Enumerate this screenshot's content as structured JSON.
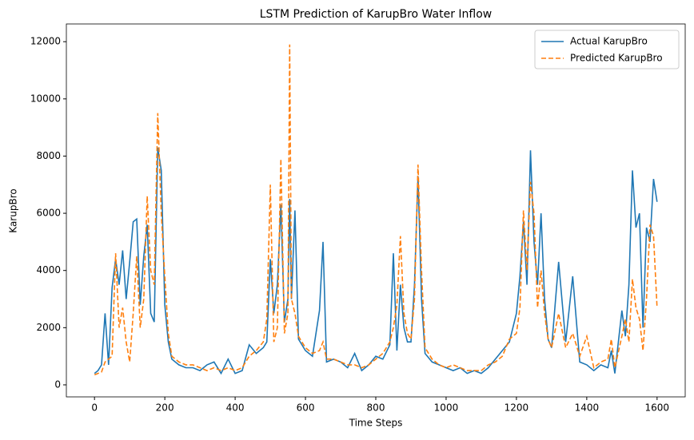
{
  "chart_data": {
    "type": "line",
    "title": "LSTM Prediction of KarupBro Water Inflow",
    "x_label": "Time Steps",
    "y_label": "KarupBro",
    "x": [
      0,
      10,
      20,
      30,
      40,
      50,
      60,
      70,
      80,
      90,
      100,
      110,
      120,
      130,
      140,
      150,
      160,
      170,
      180,
      190,
      200,
      210,
      220,
      240,
      260,
      280,
      300,
      320,
      340,
      360,
      380,
      400,
      420,
      440,
      460,
      480,
      490,
      500,
      510,
      520,
      530,
      540,
      550,
      555,
      560,
      570,
      580,
      600,
      620,
      640,
      650,
      660,
      680,
      700,
      720,
      740,
      760,
      780,
      800,
      820,
      840,
      850,
      860,
      870,
      880,
      890,
      900,
      910,
      920,
      930,
      940,
      960,
      980,
      1000,
      1020,
      1040,
      1060,
      1080,
      1100,
      1120,
      1140,
      1160,
      1180,
      1200,
      1210,
      1220,
      1230,
      1240,
      1250,
      1260,
      1270,
      1280,
      1290,
      1300,
      1320,
      1340,
      1360,
      1380,
      1400,
      1420,
      1440,
      1460,
      1470,
      1480,
      1500,
      1510,
      1520,
      1530,
      1540,
      1550,
      1560,
      1570,
      1580,
      1590,
      1600
    ],
    "series": [
      {
        "name": "Actual KarupBro",
        "color": "#1f77b4",
        "dash": false,
        "values": [
          400,
          500,
          700,
          2500,
          700,
          3400,
          4400,
          3500,
          4700,
          3000,
          4300,
          5700,
          5800,
          2800,
          4500,
          5600,
          2500,
          2200,
          8300,
          7500,
          2800,
          1500,
          900,
          700,
          600,
          600,
          500,
          700,
          800,
          400,
          900,
          400,
          500,
          1400,
          1100,
          1300,
          1500,
          4400,
          2500,
          3500,
          6300,
          2200,
          3000,
          6500,
          3000,
          6100,
          1600,
          1200,
          1000,
          2600,
          5000,
          800,
          900,
          800,
          600,
          1100,
          500,
          700,
          1000,
          900,
          1400,
          4600,
          1200,
          3500,
          2000,
          1500,
          1500,
          3500,
          7300,
          3000,
          1100,
          800,
          700,
          600,
          500,
          600,
          400,
          500,
          400,
          600,
          900,
          1200,
          1500,
          2500,
          3800,
          5700,
          3500,
          8200,
          5000,
          3500,
          6000,
          3000,
          1600,
          1300,
          4300,
          1500,
          3800,
          800,
          700,
          500,
          700,
          600,
          1200,
          400,
          2600,
          1700,
          3500,
          7500,
          5500,
          6000,
          2000,
          5500,
          5000,
          7200,
          6400
        ]
      },
      {
        "name": "Predicted KarupBro",
        "color": "#ff7f0e",
        "dash": true,
        "values": [
          350,
          400,
          450,
          800,
          900,
          1000,
          4600,
          2000,
          2700,
          1500,
          800,
          2500,
          4500,
          2000,
          3000,
          6600,
          4000,
          3500,
          9500,
          6000,
          3800,
          1800,
          1000,
          800,
          700,
          700,
          600,
          500,
          600,
          500,
          600,
          500,
          600,
          1000,
          1200,
          1500,
          2300,
          7000,
          1500,
          2000,
          7900,
          1800,
          2500,
          11900,
          3000,
          2500,
          1700,
          1300,
          1100,
          1200,
          1500,
          900,
          900,
          800,
          700,
          700,
          600,
          700,
          900,
          1100,
          1500,
          2000,
          2800,
          5200,
          2500,
          1800,
          1600,
          3000,
          7700,
          4000,
          1300,
          900,
          700,
          600,
          700,
          600,
          500,
          500,
          500,
          700,
          800,
          1000,
          1600,
          1800,
          2700,
          6100,
          4000,
          7100,
          6000,
          2700,
          4000,
          2500,
          1600,
          1300,
          2500,
          1300,
          1800,
          1000,
          1700,
          600,
          800,
          900,
          1600,
          600,
          1700,
          2300,
          1500,
          3700,
          2700,
          2300,
          1200,
          3000,
          5600,
          5200,
          2700
        ]
      }
    ],
    "xlim": [
      -80,
      1680
    ],
    "ylim": [
      -420,
      12620
    ],
    "xticks": [
      0,
      200,
      400,
      600,
      800,
      1000,
      1200,
      1400,
      1600
    ],
    "yticks": [
      0,
      2000,
      4000,
      6000,
      8000,
      10000,
      12000
    ],
    "legend": "upper right"
  }
}
